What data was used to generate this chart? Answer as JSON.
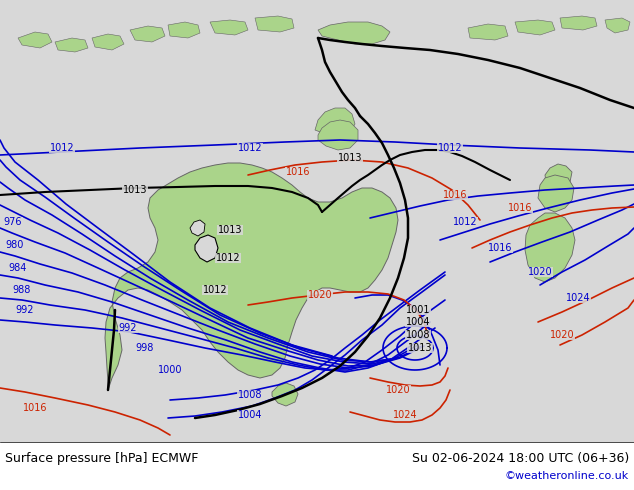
{
  "title_left": "Surface pressure [hPa] ECMWF",
  "title_right": "Su 02-06-2024 18:00 UTC (06+36)",
  "watermark": "©weatheronline.co.uk",
  "bg_color": "#d8d8d8",
  "land_color": "#aad48a",
  "coast_color": "#888888",
  "isobar_blue": "#0000cc",
  "isobar_red": "#cc2200",
  "isobar_black": "#000000",
  "text_color": "#000000",
  "watermark_color": "#0000cc",
  "figsize": [
    6.34,
    4.9
  ],
  "dpi": 100,
  "font_size_bottom": 9,
  "font_size_watermark": 8,
  "font_size_label": 7
}
